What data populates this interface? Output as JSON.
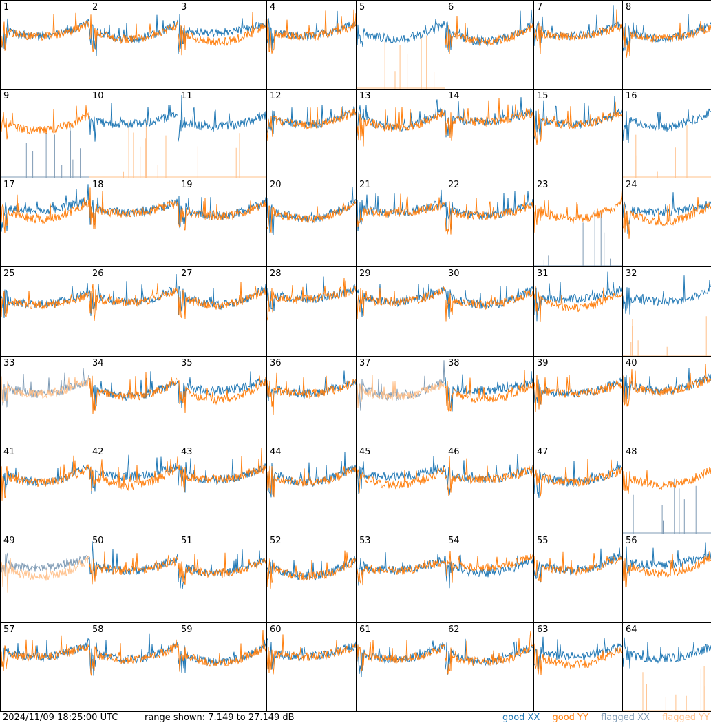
{
  "footer": {
    "timestamp": "2024/11/09 18:25:00 UTC",
    "range": "range shown: 7.149 to 27.149 dB"
  },
  "legend": {
    "good_xx": {
      "text": "good XX",
      "color": "#1f77b4"
    },
    "good_yy": {
      "text": "good YY",
      "color": "#ff7f0e"
    },
    "flagged_xx": {
      "text": "flagged XX",
      "color": "#7f9bb5"
    },
    "flagged_yy": {
      "text": "flagged YY",
      "color": "#ffc08a"
    }
  },
  "chart_data": {
    "type": "line",
    "ylim_db": [
      7.149,
      27.149
    ],
    "grid": {
      "rows": 8,
      "cols": 8
    },
    "panels": [
      {
        "label": "1",
        "xx": "good",
        "yy": "good"
      },
      {
        "label": "2",
        "xx": "good",
        "yy": "good"
      },
      {
        "label": "3",
        "xx": "good",
        "yy": "good"
      },
      {
        "label": "4",
        "xx": "good",
        "yy": "good"
      },
      {
        "label": "5",
        "xx": "good",
        "yy": "flagged"
      },
      {
        "label": "6",
        "xx": "good",
        "yy": "good"
      },
      {
        "label": "7",
        "xx": "good",
        "yy": "good"
      },
      {
        "label": "8",
        "xx": "good",
        "yy": "good"
      },
      {
        "label": "9",
        "xx": "flagged",
        "yy": "good"
      },
      {
        "label": "10",
        "xx": "good",
        "yy": "flagged"
      },
      {
        "label": "11",
        "xx": "good",
        "yy": "flagged"
      },
      {
        "label": "12",
        "xx": "good",
        "yy": "good"
      },
      {
        "label": "13",
        "xx": "good",
        "yy": "good"
      },
      {
        "label": "14",
        "xx": "good",
        "yy": "good"
      },
      {
        "label": "15",
        "xx": "good",
        "yy": "good"
      },
      {
        "label": "16",
        "xx": "good",
        "yy": "flagged"
      },
      {
        "label": "17",
        "xx": "good",
        "yy": "good"
      },
      {
        "label": "18",
        "xx": "good",
        "yy": "good"
      },
      {
        "label": "19",
        "xx": "good",
        "yy": "good"
      },
      {
        "label": "20",
        "xx": "good",
        "yy": "good"
      },
      {
        "label": "21",
        "xx": "good",
        "yy": "good"
      },
      {
        "label": "22",
        "xx": "good",
        "yy": "good"
      },
      {
        "label": "23",
        "xx": "flagged",
        "yy": "good"
      },
      {
        "label": "24",
        "xx": "good",
        "yy": "good"
      },
      {
        "label": "25",
        "xx": "good",
        "yy": "good"
      },
      {
        "label": "26",
        "xx": "good",
        "yy": "good"
      },
      {
        "label": "27",
        "xx": "good",
        "yy": "good"
      },
      {
        "label": "28",
        "xx": "good",
        "yy": "good"
      },
      {
        "label": "29",
        "xx": "good",
        "yy": "good"
      },
      {
        "label": "30",
        "xx": "good",
        "yy": "good"
      },
      {
        "label": "31",
        "xx": "good",
        "yy": "good"
      },
      {
        "label": "32",
        "xx": "good",
        "yy": "flagged"
      },
      {
        "label": "33",
        "xx": "flagged",
        "yy": "flagged"
      },
      {
        "label": "34",
        "xx": "good",
        "yy": "good"
      },
      {
        "label": "35",
        "xx": "good",
        "yy": "good"
      },
      {
        "label": "36",
        "xx": "good",
        "yy": "good"
      },
      {
        "label": "37",
        "xx": "flagged",
        "yy": "flagged"
      },
      {
        "label": "38",
        "xx": "good",
        "yy": "good"
      },
      {
        "label": "39",
        "xx": "good",
        "yy": "good"
      },
      {
        "label": "40",
        "xx": "good",
        "yy": "good"
      },
      {
        "label": "41",
        "xx": "good",
        "yy": "good"
      },
      {
        "label": "42",
        "xx": "good",
        "yy": "good"
      },
      {
        "label": "43",
        "xx": "good",
        "yy": "good"
      },
      {
        "label": "44",
        "xx": "good",
        "yy": "good"
      },
      {
        "label": "45",
        "xx": "good",
        "yy": "good"
      },
      {
        "label": "46",
        "xx": "good",
        "yy": "good"
      },
      {
        "label": "47",
        "xx": "good",
        "yy": "good"
      },
      {
        "label": "48",
        "xx": "flagged",
        "yy": "good"
      },
      {
        "label": "49",
        "xx": "flagged",
        "yy": "flagged"
      },
      {
        "label": "50",
        "xx": "good",
        "yy": "good"
      },
      {
        "label": "51",
        "xx": "good",
        "yy": "good"
      },
      {
        "label": "52",
        "xx": "good",
        "yy": "good"
      },
      {
        "label": "53",
        "xx": "good",
        "yy": "good"
      },
      {
        "label": "54",
        "xx": "good",
        "yy": "good"
      },
      {
        "label": "55",
        "xx": "good",
        "yy": "good"
      },
      {
        "label": "56",
        "xx": "good",
        "yy": "good"
      },
      {
        "label": "57",
        "xx": "good",
        "yy": "good"
      },
      {
        "label": "58",
        "xx": "good",
        "yy": "good"
      },
      {
        "label": "59",
        "xx": "good",
        "yy": "good"
      },
      {
        "label": "60",
        "xx": "good",
        "yy": "good"
      },
      {
        "label": "61",
        "xx": "good",
        "yy": "good"
      },
      {
        "label": "62",
        "xx": "good",
        "yy": "good"
      },
      {
        "label": "63",
        "xx": "good",
        "yy": "good"
      },
      {
        "label": "64",
        "xx": "good",
        "yy": "flagged"
      }
    ]
  }
}
